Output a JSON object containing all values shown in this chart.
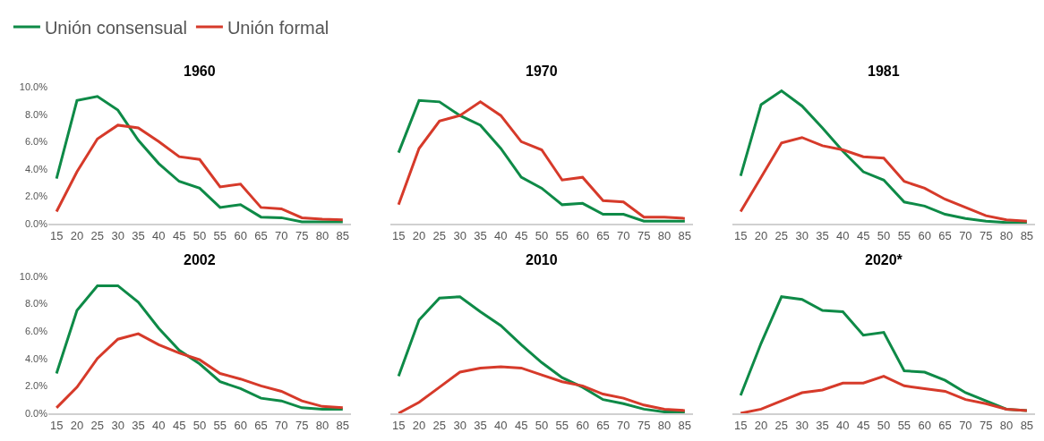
{
  "chart_data": [
    {
      "type": "line",
      "title": "1960",
      "legend": "top left",
      "categories": [
        "15",
        "20",
        "25",
        "30",
        "35",
        "40",
        "45",
        "50",
        "55",
        "60",
        "65",
        "70",
        "75",
        "80",
        "85"
      ],
      "ylim": [
        0,
        10
      ],
      "yticks": [
        {
          "value": 0,
          "label": "0.0%"
        },
        {
          "value": 2,
          "label": "2.0%"
        },
        {
          "value": 4,
          "label": "4.0%"
        },
        {
          "value": 6,
          "label": "6.0%"
        },
        {
          "value": 8,
          "label": "8.0%"
        },
        {
          "value": 10,
          "label": "10.0%"
        }
      ],
      "series": [
        {
          "name": "Unión consensual",
          "color": "#0e8a47",
          "values": [
            3.3,
            9.0,
            9.3,
            8.3,
            6.1,
            4.4,
            3.1,
            2.6,
            1.2,
            1.4,
            0.5,
            0.45,
            0.15,
            0.15,
            0.15
          ]
        },
        {
          "name": "Unión formal",
          "color": "#d63a2a",
          "values": [
            0.9,
            3.8,
            6.2,
            7.2,
            7.0,
            6.0,
            4.9,
            4.7,
            2.7,
            2.9,
            1.2,
            1.1,
            0.45,
            0.35,
            0.3
          ]
        }
      ]
    },
    {
      "type": "line",
      "title": "1970",
      "tick_labels": "x",
      "categories": [
        "15",
        "20",
        "25",
        "30",
        "35",
        "40",
        "45",
        "50",
        "55",
        "60",
        "65",
        "70",
        "75",
        "80",
        "85"
      ],
      "ylim": [
        0,
        10
      ],
      "series": [
        {
          "color": "#0e8a47",
          "values": [
            5.2,
            9.0,
            8.9,
            7.9,
            7.2,
            5.5,
            3.4,
            2.6,
            1.4,
            1.5,
            0.7,
            0.7,
            0.2,
            0.2,
            0.2
          ]
        },
        {
          "color": "#d63a2a",
          "values": [
            1.4,
            5.5,
            7.5,
            7.9,
            8.9,
            7.9,
            6.0,
            5.4,
            3.2,
            3.4,
            1.7,
            1.6,
            0.5,
            0.5,
            0.4
          ]
        }
      ]
    },
    {
      "type": "line",
      "title": "1981",
      "tick_labels": "x",
      "categories": [
        "15",
        "20",
        "25",
        "30",
        "35",
        "40",
        "45",
        "50",
        "55",
        "60",
        "65",
        "70",
        "75",
        "80",
        "85"
      ],
      "ylim": [
        0,
        10
      ],
      "series": [
        {
          "color": "#0e8a47",
          "values": [
            3.5,
            8.7,
            9.7,
            8.6,
            7.0,
            5.3,
            3.8,
            3.2,
            1.6,
            1.3,
            0.7,
            0.4,
            0.2,
            0.1,
            0.1
          ]
        },
        {
          "color": "#d63a2a",
          "values": [
            0.9,
            3.4,
            5.9,
            6.3,
            5.7,
            5.4,
            4.9,
            4.8,
            3.1,
            2.6,
            1.8,
            1.2,
            0.6,
            0.3,
            0.2
          ]
        }
      ]
    },
    {
      "type": "line",
      "title": "2002",
      "categories": [
        "15",
        "20",
        "25",
        "30",
        "35",
        "40",
        "45",
        "50",
        "55",
        "60",
        "65",
        "70",
        "75",
        "80",
        "85"
      ],
      "ylim": [
        0,
        10
      ],
      "yticks": [
        {
          "value": 0,
          "label": "0.0%"
        },
        {
          "value": 2,
          "label": "2.0%"
        },
        {
          "value": 4,
          "label": "4.0%"
        },
        {
          "value": 6,
          "label": "6.0%"
        },
        {
          "value": 8,
          "label": "8.0%"
        },
        {
          "value": 10,
          "label": "10.0%"
        }
      ],
      "series": [
        {
          "color": "#0e8a47",
          "values": [
            2.9,
            7.5,
            9.3,
            9.3,
            8.1,
            6.2,
            4.6,
            3.6,
            2.3,
            1.8,
            1.1,
            0.9,
            0.4,
            0.3,
            0.3
          ]
        },
        {
          "color": "#d63a2a",
          "values": [
            0.4,
            1.9,
            4.0,
            5.4,
            5.8,
            5.0,
            4.4,
            3.9,
            2.9,
            2.5,
            2.0,
            1.6,
            0.9,
            0.5,
            0.4
          ]
        }
      ]
    },
    {
      "type": "line",
      "title": "2010",
      "tick_labels": "x",
      "categories": [
        "15",
        "20",
        "25",
        "30",
        "35",
        "40",
        "45",
        "50",
        "55",
        "60",
        "65",
        "70",
        "75",
        "80",
        "85"
      ],
      "ylim": [
        0,
        10
      ],
      "series": [
        {
          "color": "#0e8a47",
          "values": [
            2.7,
            6.8,
            8.4,
            8.5,
            7.4,
            6.4,
            5.0,
            3.7,
            2.6,
            1.9,
            1.0,
            0.7,
            0.3,
            0.1,
            0.1
          ]
        },
        {
          "color": "#d63a2a",
          "values": [
            0.0,
            0.8,
            1.9,
            3.0,
            3.3,
            3.4,
            3.3,
            2.8,
            2.3,
            2.0,
            1.4,
            1.1,
            0.6,
            0.3,
            0.2
          ]
        }
      ]
    },
    {
      "type": "line",
      "title": "2020*",
      "tick_labels": "x",
      "categories": [
        "15",
        "20",
        "25",
        "30",
        "35",
        "40",
        "45",
        "50",
        "55",
        "60",
        "65",
        "70",
        "75",
        "80",
        "85"
      ],
      "ylim": [
        0,
        10
      ],
      "series": [
        {
          "color": "#0e8a47",
          "values": [
            1.3,
            5.1,
            8.5,
            8.3,
            7.5,
            7.4,
            5.7,
            5.9,
            3.1,
            3.0,
            2.4,
            1.5,
            0.9,
            0.3,
            0.2
          ]
        },
        {
          "color": "#d63a2a",
          "values": [
            0.0,
            0.3,
            0.9,
            1.5,
            1.7,
            2.2,
            2.2,
            2.7,
            2.0,
            1.8,
            1.6,
            1.0,
            0.7,
            0.3,
            0.2
          ]
        }
      ]
    }
  ]
}
